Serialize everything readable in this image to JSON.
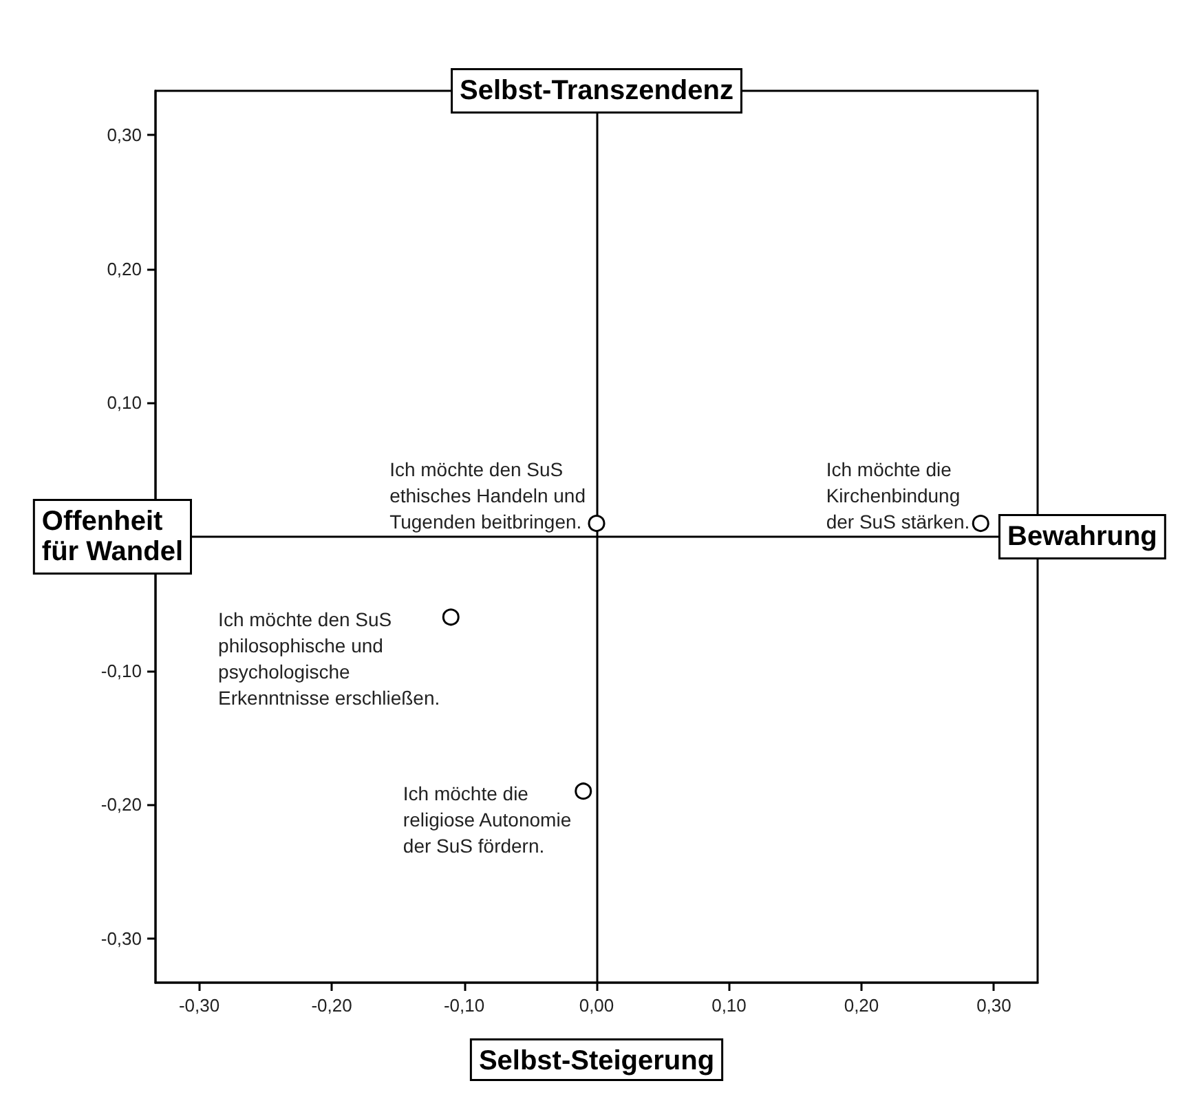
{
  "chart_data": {
    "type": "scatter",
    "xlabel": "Selbst-Steigerung",
    "ylabel": "Offenheit\nfür Wandel",
    "x": [
      0.0,
      0.29,
      -0.11,
      -0.01
    ],
    "values": [
      0.01,
      0.01,
      -0.06,
      -0.19
    ],
    "color": "#000000",
    "marker": "circle",
    "xlim": [
      -0.333,
      0.333
    ],
    "ylim": [
      -0.333,
      0.333
    ],
    "xticks": [
      {
        "value": -0.3,
        "label": "-0,30"
      },
      {
        "value": -0.2,
        "label": "-0,20"
      },
      {
        "value": -0.1,
        "label": "-0,10"
      },
      {
        "value": 0,
        "label": "0,00"
      },
      {
        "value": 0.1,
        "label": "0,10"
      },
      {
        "value": 0.2,
        "label": "0,20"
      },
      {
        "value": 0.3,
        "label": "0,30"
      }
    ],
    "yticks": [
      {
        "value": -0.3,
        "label": "-0,30"
      },
      {
        "value": -0.2,
        "label": "-0,20"
      },
      {
        "value": -0.1,
        "label": "-0,10"
      },
      {
        "value": 0.1,
        "label": "0,10"
      },
      {
        "value": 0.2,
        "label": "0,20"
      },
      {
        "value": 0.3,
        "label": "0,30"
      }
    ],
    "ref_lines": [
      {
        "axis": "x",
        "value": 0,
        "label": "Selbst-Transzendenz"
      },
      {
        "axis": "y",
        "value": 0,
        "label": "Bewahrung"
      }
    ],
    "annotations": [
      {
        "text": "Ich möchte den SuS\nethisches Handeln und\nTugenden beitbringen.",
        "x": 0.0,
        "y": 0.01
      },
      {
        "text": "Ich möchte die\nKirchenbindung\nder SuS stärken.",
        "x": 0.29,
        "y": 0.01
      },
      {
        "text": "Ich möchte den SuS\nphilosophische und\npsychologische\nErkenntnisse erschließen.",
        "x": -0.11,
        "y": -0.06
      },
      {
        "text": "Ich möchte die\nreligiose Autonomie\nder SuS fördern.",
        "x": -0.01,
        "y": -0.19
      }
    ]
  }
}
